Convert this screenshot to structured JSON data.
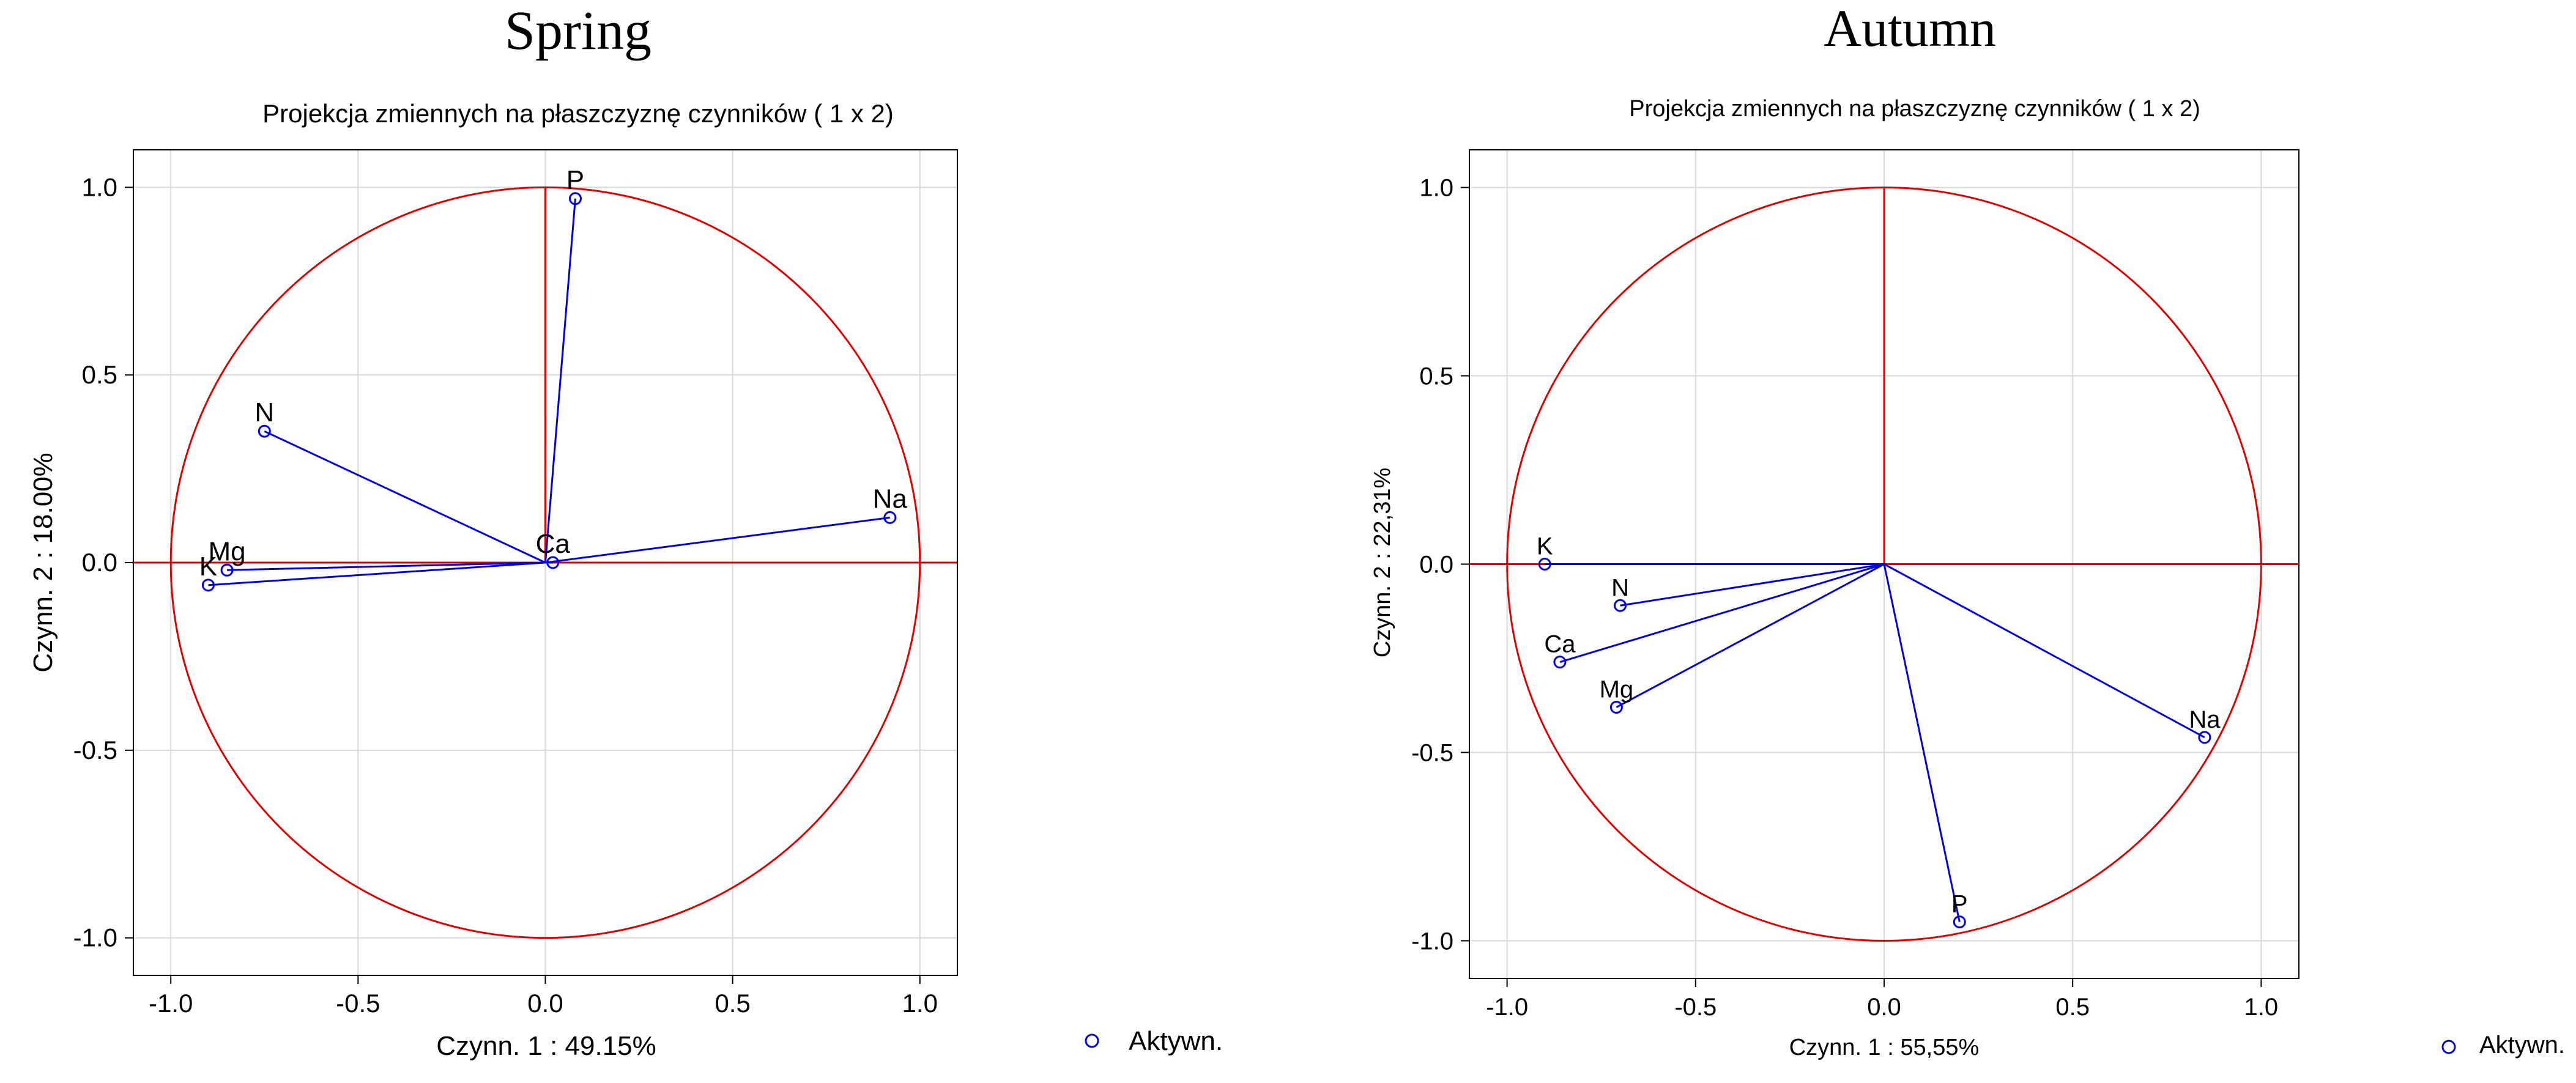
{
  "chart_data": [
    {
      "type": "scatter",
      "heading": "Spring",
      "title": "Projekcja zmiennych na płaszczyznę czynników   ( 1 x  2)",
      "xlabel": "Czynn. 1 : 49.15%",
      "ylabel": "Czynn. 2 : 18.00%",
      "xlim": [
        -1.1,
        1.1
      ],
      "ylim": [
        -1.1,
        1.1
      ],
      "xticks": [
        -1.0,
        -0.5,
        0.0,
        0.5,
        1.0
      ],
      "yticks": [
        -1.0,
        -0.5,
        0.0,
        0.5,
        1.0
      ],
      "xtick_labels": [
        "-1.0",
        "-0.5",
        "0.0",
        "0.5",
        "1.0"
      ],
      "ytick_labels": [
        "-1.0",
        "-0.5",
        "0.0",
        "0.5",
        "1.0"
      ],
      "grid": true,
      "unit_circle": true,
      "legend": {
        "label": "Aktywn.",
        "position": "bottom-right"
      },
      "points": [
        {
          "label": "P",
          "x": 0.08,
          "y": 0.97
        },
        {
          "label": "N",
          "x": -0.75,
          "y": 0.35
        },
        {
          "label": "Na",
          "x": 0.92,
          "y": 0.12
        },
        {
          "label": "Ca",
          "x": 0.02,
          "y": 0.0
        },
        {
          "label": "Mg",
          "x": -0.85,
          "y": -0.02
        },
        {
          "label": "K",
          "x": -0.9,
          "y": -0.06
        }
      ]
    },
    {
      "type": "scatter",
      "heading": "Autumn",
      "title": "Projekcja zmiennych na płaszczyznę czynników   ( 1 x  2)",
      "xlabel": "Czynn. 1 : 55,55%",
      "ylabel": "Czynn. 2 : 22,31%",
      "xlim": [
        -1.1,
        1.1
      ],
      "ylim": [
        -1.1,
        1.1
      ],
      "xticks": [
        -1.0,
        -0.5,
        0.0,
        0.5,
        1.0
      ],
      "yticks": [
        -1.0,
        -0.5,
        0.0,
        0.5,
        1.0
      ],
      "xtick_labels": [
        "-1.0",
        "-0.5",
        "0.0",
        "0.5",
        "1.0"
      ],
      "ytick_labels": [
        "-1.0",
        "-0.5",
        "0.0",
        "0.5",
        "1.0"
      ],
      "grid": true,
      "unit_circle": true,
      "legend": {
        "label": "Aktywn.",
        "position": "bottom-right"
      },
      "points": [
        {
          "label": "K",
          "x": -0.9,
          "y": 0.0
        },
        {
          "label": "N",
          "x": -0.7,
          "y": -0.11
        },
        {
          "label": "Ca",
          "x": -0.86,
          "y": -0.26
        },
        {
          "label": "Mg",
          "x": -0.71,
          "y": -0.38
        },
        {
          "label": "Na",
          "x": 0.85,
          "y": -0.46
        },
        {
          "label": "P",
          "x": 0.2,
          "y": -0.95
        }
      ]
    }
  ],
  "colors": {
    "vector": "#0000e0",
    "axis_circle": "#e00000",
    "grid": "#d8d8d8",
    "frame": "#000000",
    "text": "#000000"
  }
}
